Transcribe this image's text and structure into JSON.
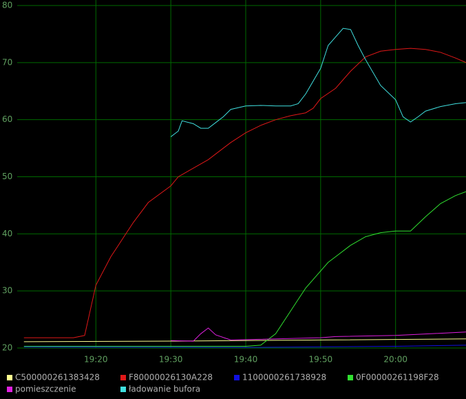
{
  "chart_data": {
    "type": "line",
    "xlim": [
      1149.5,
      1209.4
    ],
    "ylim": [
      20,
      80
    ],
    "xticks": [
      {
        "value": 1160,
        "label": "19:20"
      },
      {
        "value": 1170,
        "label": "19:30"
      },
      {
        "value": 1180,
        "label": "19:40"
      },
      {
        "value": 1190,
        "label": "19:50"
      },
      {
        "value": 1200,
        "label": "20:00"
      }
    ],
    "yticks": [
      20,
      30,
      40,
      50,
      60,
      70,
      80
    ],
    "grid": true,
    "series": [
      {
        "name": "C500000261383428",
        "color": "#ffff90",
        "x": [
          1150.4,
          1170,
          1190,
          1209.4
        ],
        "values": [
          21.1,
          21.2,
          21.4,
          21.6
        ]
      },
      {
        "name": "F80000026130A228",
        "color": "#e01818",
        "x": [
          1150.4,
          1157,
          1158.5,
          1160,
          1162,
          1165,
          1167,
          1170,
          1171,
          1173,
          1175,
          1177,
          1178,
          1180,
          1182,
          1184,
          1186,
          1188,
          1189,
          1190,
          1192,
          1194,
          1196,
          1198,
          1200,
          1202,
          1204,
          1206,
          1208,
          1209.4
        ],
        "values": [
          21.8,
          21.8,
          22.2,
          31,
          36,
          42,
          45.5,
          48.4,
          50,
          51.5,
          53,
          55,
          56,
          57.7,
          59,
          60,
          60.7,
          61.2,
          62,
          63.7,
          65.5,
          68.5,
          71,
          72,
          72.3,
          72.5,
          72.3,
          71.8,
          70.8,
          70
        ]
      },
      {
        "name": "1100000261738928",
        "color": "#1010e0",
        "x": [
          1150.4,
          1180,
          1200,
          1209.4
        ],
        "values": [
          20.2,
          20.1,
          20.3,
          20.5
        ]
      },
      {
        "name": "0F00000261198F28",
        "color": "#30e030",
        "x": [
          1150.4,
          1180,
          1182,
          1184,
          1186,
          1188,
          1190,
          1191,
          1192,
          1194,
          1196,
          1198,
          1200,
          1202,
          1204,
          1206,
          1208,
          1209.4
        ],
        "values": [
          20.3,
          20.3,
          20.5,
          22.5,
          26.5,
          30.5,
          33.5,
          35,
          36,
          38,
          39.5,
          40.2,
          40.5,
          40.5,
          43,
          45.3,
          46.7,
          47.4
        ]
      },
      {
        "name": "pomieszczenie",
        "color": "#e020e0",
        "x": [
          1170,
          1173,
          1174,
          1175,
          1176,
          1178,
          1190,
          1192,
          1200,
          1209.4
        ],
        "values": [
          21.3,
          21.2,
          22.5,
          23.5,
          22.3,
          21.4,
          21.8,
          22,
          22.2,
          22.8
        ]
      },
      {
        "name": "ładowanie bufora",
        "color": "#40e0e0",
        "x": [
          1170,
          1171,
          1171.5,
          1173,
          1174,
          1175,
          1176,
          1177,
          1178,
          1180,
          1182,
          1184,
          1186,
          1187,
          1188,
          1190,
          1191,
          1192,
          1193,
          1194,
          1195,
          1196,
          1198,
          1200,
          1201,
          1202,
          1203,
          1204,
          1206,
          1208,
          1209.4
        ],
        "values": [
          57,
          58,
          59.8,
          59.3,
          58.5,
          58.5,
          59.5,
          60.5,
          61.8,
          62.4,
          62.5,
          62.4,
          62.4,
          62.8,
          64.5,
          69,
          73,
          74.5,
          76,
          75.8,
          73,
          70.5,
          66,
          63.5,
          60.5,
          59.6,
          60.5,
          61.5,
          62.3,
          62.8,
          63
        ]
      }
    ]
  }
}
